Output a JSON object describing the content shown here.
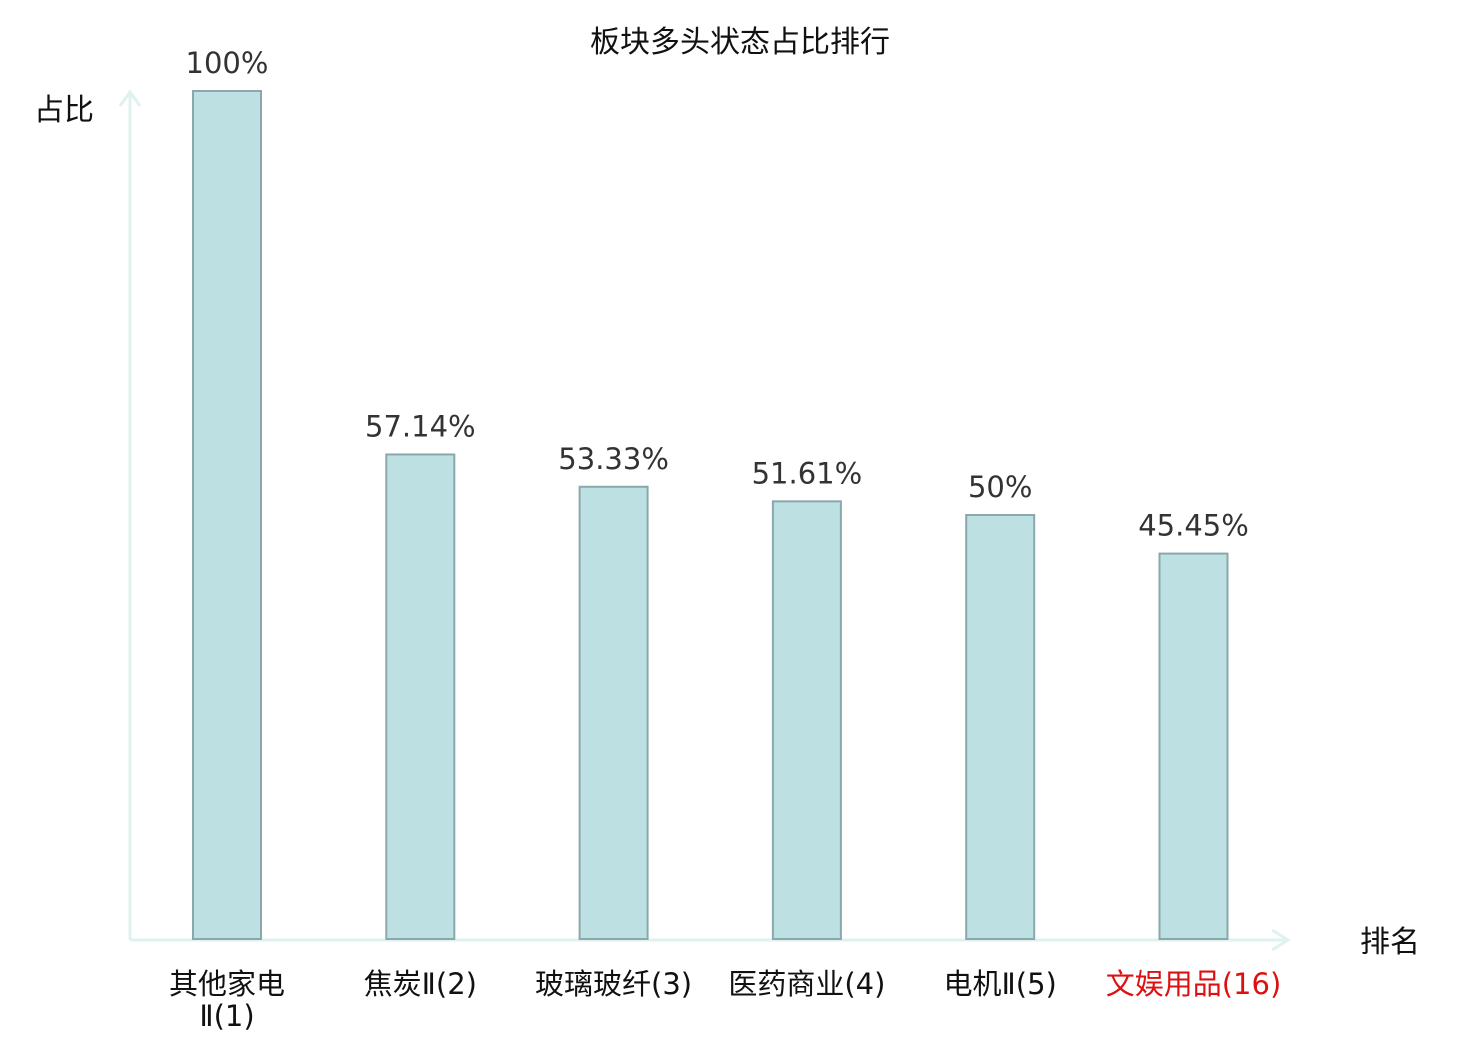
{
  "chart_data": {
    "type": "bar",
    "title": "板块多头状态占比排行",
    "ylabel": "占比",
    "xlabel": "排名",
    "ylim": [
      0,
      100
    ],
    "grid": false,
    "categories": [
      "其他家电Ⅱ(1)",
      "焦炭Ⅱ(2)",
      "玻璃玻纤(3)",
      "医药商业(4)",
      "电机Ⅱ(5)",
      "文娱用品(16)"
    ],
    "values": [
      100,
      57.14,
      53.33,
      51.61,
      50,
      45.45
    ],
    "value_labels": [
      "100%",
      "57.14%",
      "53.33%",
      "51.61%",
      "50%",
      "45.45%"
    ],
    "highlight_index": 5,
    "colors": {
      "bar_fill": "#bde0e2",
      "bar_stroke": "#8aa8ab",
      "axis": "#dff2ef",
      "label": "#111111",
      "highlight": "#dd1111"
    }
  }
}
